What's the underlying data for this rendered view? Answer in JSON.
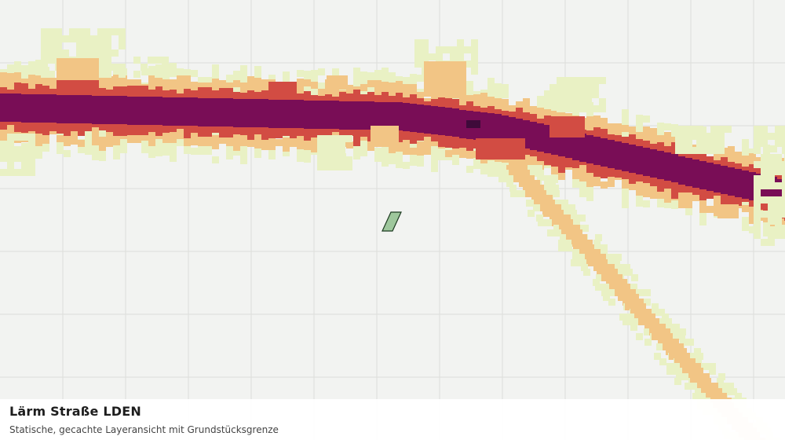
{
  "map": {
    "layer": "Lärm Straße LDEN",
    "colors": {
      "background": "#f2f3f1",
      "grid": "#dcdedb",
      "noise_level_1": "#e9f1c4",
      "noise_level_2": "#f2c585",
      "noise_level_3": "#d24c43",
      "noise_level_4": "#790d56",
      "noise_level_5": "#3f0a3a",
      "parcel_fill": "#9ec79c",
      "parcel_stroke": "#1d3b21"
    },
    "features": [
      "road-noise-band",
      "parcel-boundary"
    ]
  },
  "caption": {
    "title": "Lärm Straße LDEN",
    "subtitle": "Statische, gecachte Layeransicht mit Grundstücksgrenze"
  }
}
